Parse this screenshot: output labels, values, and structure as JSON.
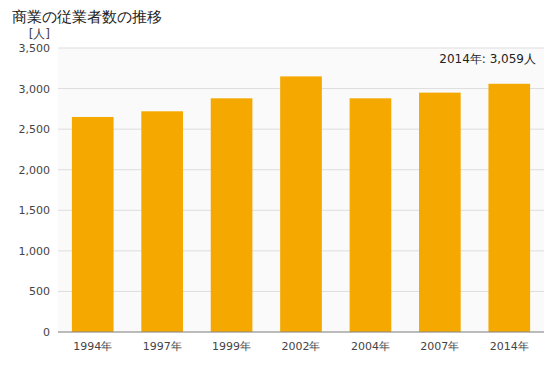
{
  "chart_data": {
    "type": "bar",
    "title": "商業の従業者数の推移",
    "ylabel": "[人]",
    "annotation": "2014年: 3,059人",
    "categories": [
      "1994年",
      "1997年",
      "1999年",
      "2002年",
      "2004年",
      "2007年",
      "2014年"
    ],
    "values": [
      2650,
      2720,
      2880,
      3150,
      2880,
      2950,
      3059
    ],
    "color": "#F5A800",
    "ylim": [
      0,
      3500
    ],
    "yticks": [
      0,
      500,
      {
        "value": 1000,
        "label": "1,000"
      },
      {
        "value": 1500,
        "label": "1,500"
      },
      {
        "value": 2000,
        "label": "2,000"
      },
      {
        "value": 2500,
        "label": "2,500"
      },
      {
        "value": 3000,
        "label": "3,000"
      },
      {
        "value": 3500,
        "label": "3,500"
      }
    ],
    "grid": true
  }
}
